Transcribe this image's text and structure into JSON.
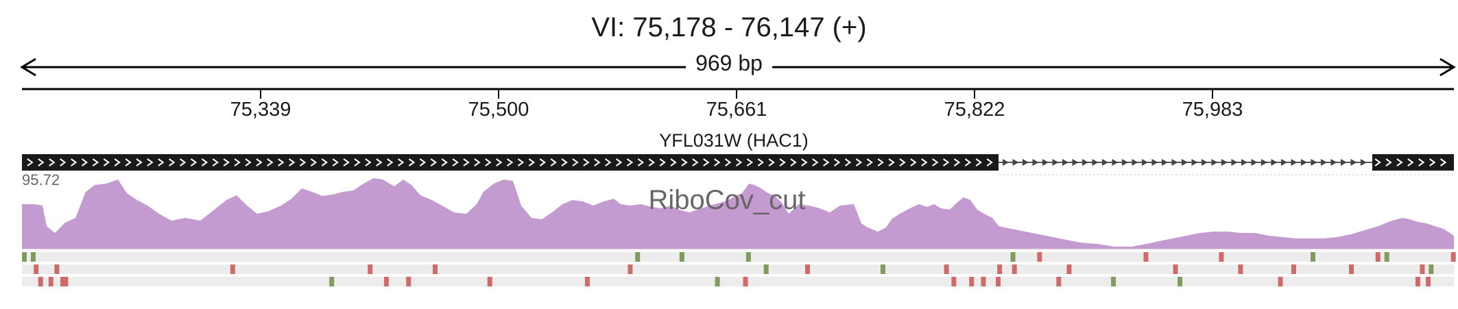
{
  "header": {
    "region": "VI: 75,178 - 76,147 (+)",
    "span": "969 bp"
  },
  "ruler": {
    "ticks": [
      "75,339",
      "75,500",
      "75,661",
      "75,822",
      "75,983"
    ]
  },
  "gene": {
    "label": "YFL031W (HAC1)",
    "strand": "+",
    "exon1": [
      75178,
      75838
    ],
    "intron": [
      75838,
      76090
    ],
    "exon2": [
      76090,
      76147
    ]
  },
  "coverage_track": {
    "name": "RiboCov_cut",
    "max": "95.72",
    "color": "#c49bd0"
  },
  "colors": {
    "frame_green": "#7f9b5e",
    "frame_red": "#cf6a6a",
    "row_bg": "#ececec"
  },
  "frame_markers": {
    "row1": [
      {
        "pos": 75178,
        "c": "g"
      },
      {
        "pos": 75184,
        "c": "g"
      },
      {
        "pos": 75593,
        "c": "g"
      },
      {
        "pos": 75623,
        "c": "g"
      },
      {
        "pos": 75668,
        "c": "g"
      },
      {
        "pos": 75847,
        "c": "g"
      },
      {
        "pos": 75865,
        "c": "r"
      },
      {
        "pos": 75937,
        "c": "r"
      },
      {
        "pos": 75988,
        "c": "r"
      },
      {
        "pos": 76050,
        "c": "g"
      },
      {
        "pos": 76094,
        "c": "r"
      },
      {
        "pos": 76100,
        "c": "g"
      },
      {
        "pos": 76145,
        "c": "r"
      }
    ],
    "row2": [
      {
        "pos": 75186,
        "c": "r"
      },
      {
        "pos": 75200,
        "c": "r"
      },
      {
        "pos": 75319,
        "c": "r"
      },
      {
        "pos": 75412,
        "c": "r"
      },
      {
        "pos": 75456,
        "c": "r"
      },
      {
        "pos": 75588,
        "c": "r"
      },
      {
        "pos": 75680,
        "c": "g"
      },
      {
        "pos": 75708,
        "c": "r"
      },
      {
        "pos": 75759,
        "c": "g"
      },
      {
        "pos": 75802,
        "c": "r"
      },
      {
        "pos": 75838,
        "c": "r"
      },
      {
        "pos": 75848,
        "c": "r"
      },
      {
        "pos": 75885,
        "c": "r"
      },
      {
        "pos": 75957,
        "c": "r"
      },
      {
        "pos": 76001,
        "c": "r"
      },
      {
        "pos": 76037,
        "c": "r"
      },
      {
        "pos": 76076,
        "c": "r"
      },
      {
        "pos": 76124,
        "c": "r"
      },
      {
        "pos": 76130,
        "c": "g"
      }
    ],
    "row3": [
      {
        "pos": 75189,
        "c": "r"
      },
      {
        "pos": 75196,
        "c": "r"
      },
      {
        "pos": 75204,
        "c": "r"
      },
      {
        "pos": 75206,
        "c": "r"
      },
      {
        "pos": 75386,
        "c": "g"
      },
      {
        "pos": 75423,
        "c": "r"
      },
      {
        "pos": 75438,
        "c": "r"
      },
      {
        "pos": 75493,
        "c": "r"
      },
      {
        "pos": 75559,
        "c": "r"
      },
      {
        "pos": 75647,
        "c": "g"
      },
      {
        "pos": 75666,
        "c": "r"
      },
      {
        "pos": 75807,
        "c": "r"
      },
      {
        "pos": 75819,
        "c": "r"
      },
      {
        "pos": 75827,
        "c": "r"
      },
      {
        "pos": 75837,
        "c": "r"
      },
      {
        "pos": 75878,
        "c": "r"
      },
      {
        "pos": 75915,
        "c": "g"
      },
      {
        "pos": 75960,
        "c": "g"
      },
      {
        "pos": 76028,
        "c": "r"
      },
      {
        "pos": 76121,
        "c": "r"
      },
      {
        "pos": 76128,
        "c": "r"
      }
    ]
  }
}
